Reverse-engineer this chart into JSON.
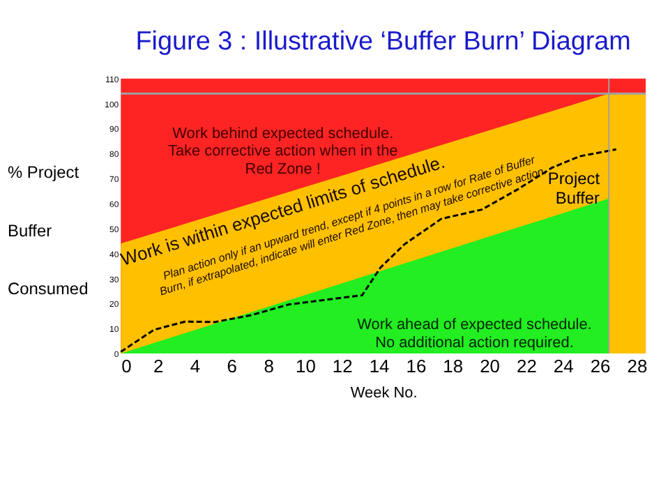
{
  "chart_data": {
    "type": "area",
    "title": "Figure 3 : Illustrative ‘Buffer Burn’ Diagram",
    "xlabel": "Week No.",
    "ylabel": "% Project\nBuffer\nConsumed",
    "xlim": [
      0,
      28.5
    ],
    "xticks": [
      0,
      2,
      4,
      6,
      8,
      10,
      12,
      14,
      16,
      18,
      20,
      22,
      24,
      26,
      28
    ],
    "ylim": [
      0,
      110
    ],
    "yticks": [
      0,
      10,
      20,
      30,
      40,
      50,
      60,
      70,
      80,
      90,
      100,
      110
    ],
    "grid": false,
    "legend": false,
    "series": [
      {
        "color": "#ff2424",
        "x": [
          0,
          28.5
        ],
        "values": [
          110,
          110
        ]
      },
      {
        "color": "#ffc000",
        "x": [
          0,
          26.5,
          28.5
        ],
        "values": [
          44,
          104,
          104
        ]
      },
      {
        "color": "#22ee22",
        "x": [
          0,
          26.5
        ],
        "values": [
          0,
          62
        ]
      },
      {
        "type": "line",
        "name": "Project Buffer",
        "color": "#000000",
        "line_style": "dashed",
        "x": [
          0,
          1.8,
          3.5,
          5.1,
          7.1,
          9.1,
          11.1,
          13.1,
          14.1,
          15.4,
          17.4,
          19.6,
          21.6,
          23.4,
          24.9,
          26.9
        ],
        "values": [
          0.7,
          9.5,
          12.8,
          12.6,
          15.4,
          19.6,
          21.5,
          23.3,
          34.4,
          43.7,
          53.9,
          57.6,
          65.9,
          74.3,
          78.9,
          81.7
        ]
      }
    ],
    "ref_lines": [
      {
        "axis": "y",
        "value": 104,
        "color": "#a0a0a0"
      },
      {
        "axis": "x",
        "value": 26.5,
        "color": "#a0a0a0"
      }
    ],
    "annotations": [
      "Work behind expected schedule.\nTake corrective action when in the\nRed Zone !",
      "Work is within expected limits of schedule.",
      "Plan action only if an upward trend, except if 4 points in a row for  Rate of Buffer\nBurn, if extrapolated, indicate will enter Red Zone, then may take corrective action.",
      "Work ahead of expected schedule.\nNo additional action required."
    ]
  }
}
